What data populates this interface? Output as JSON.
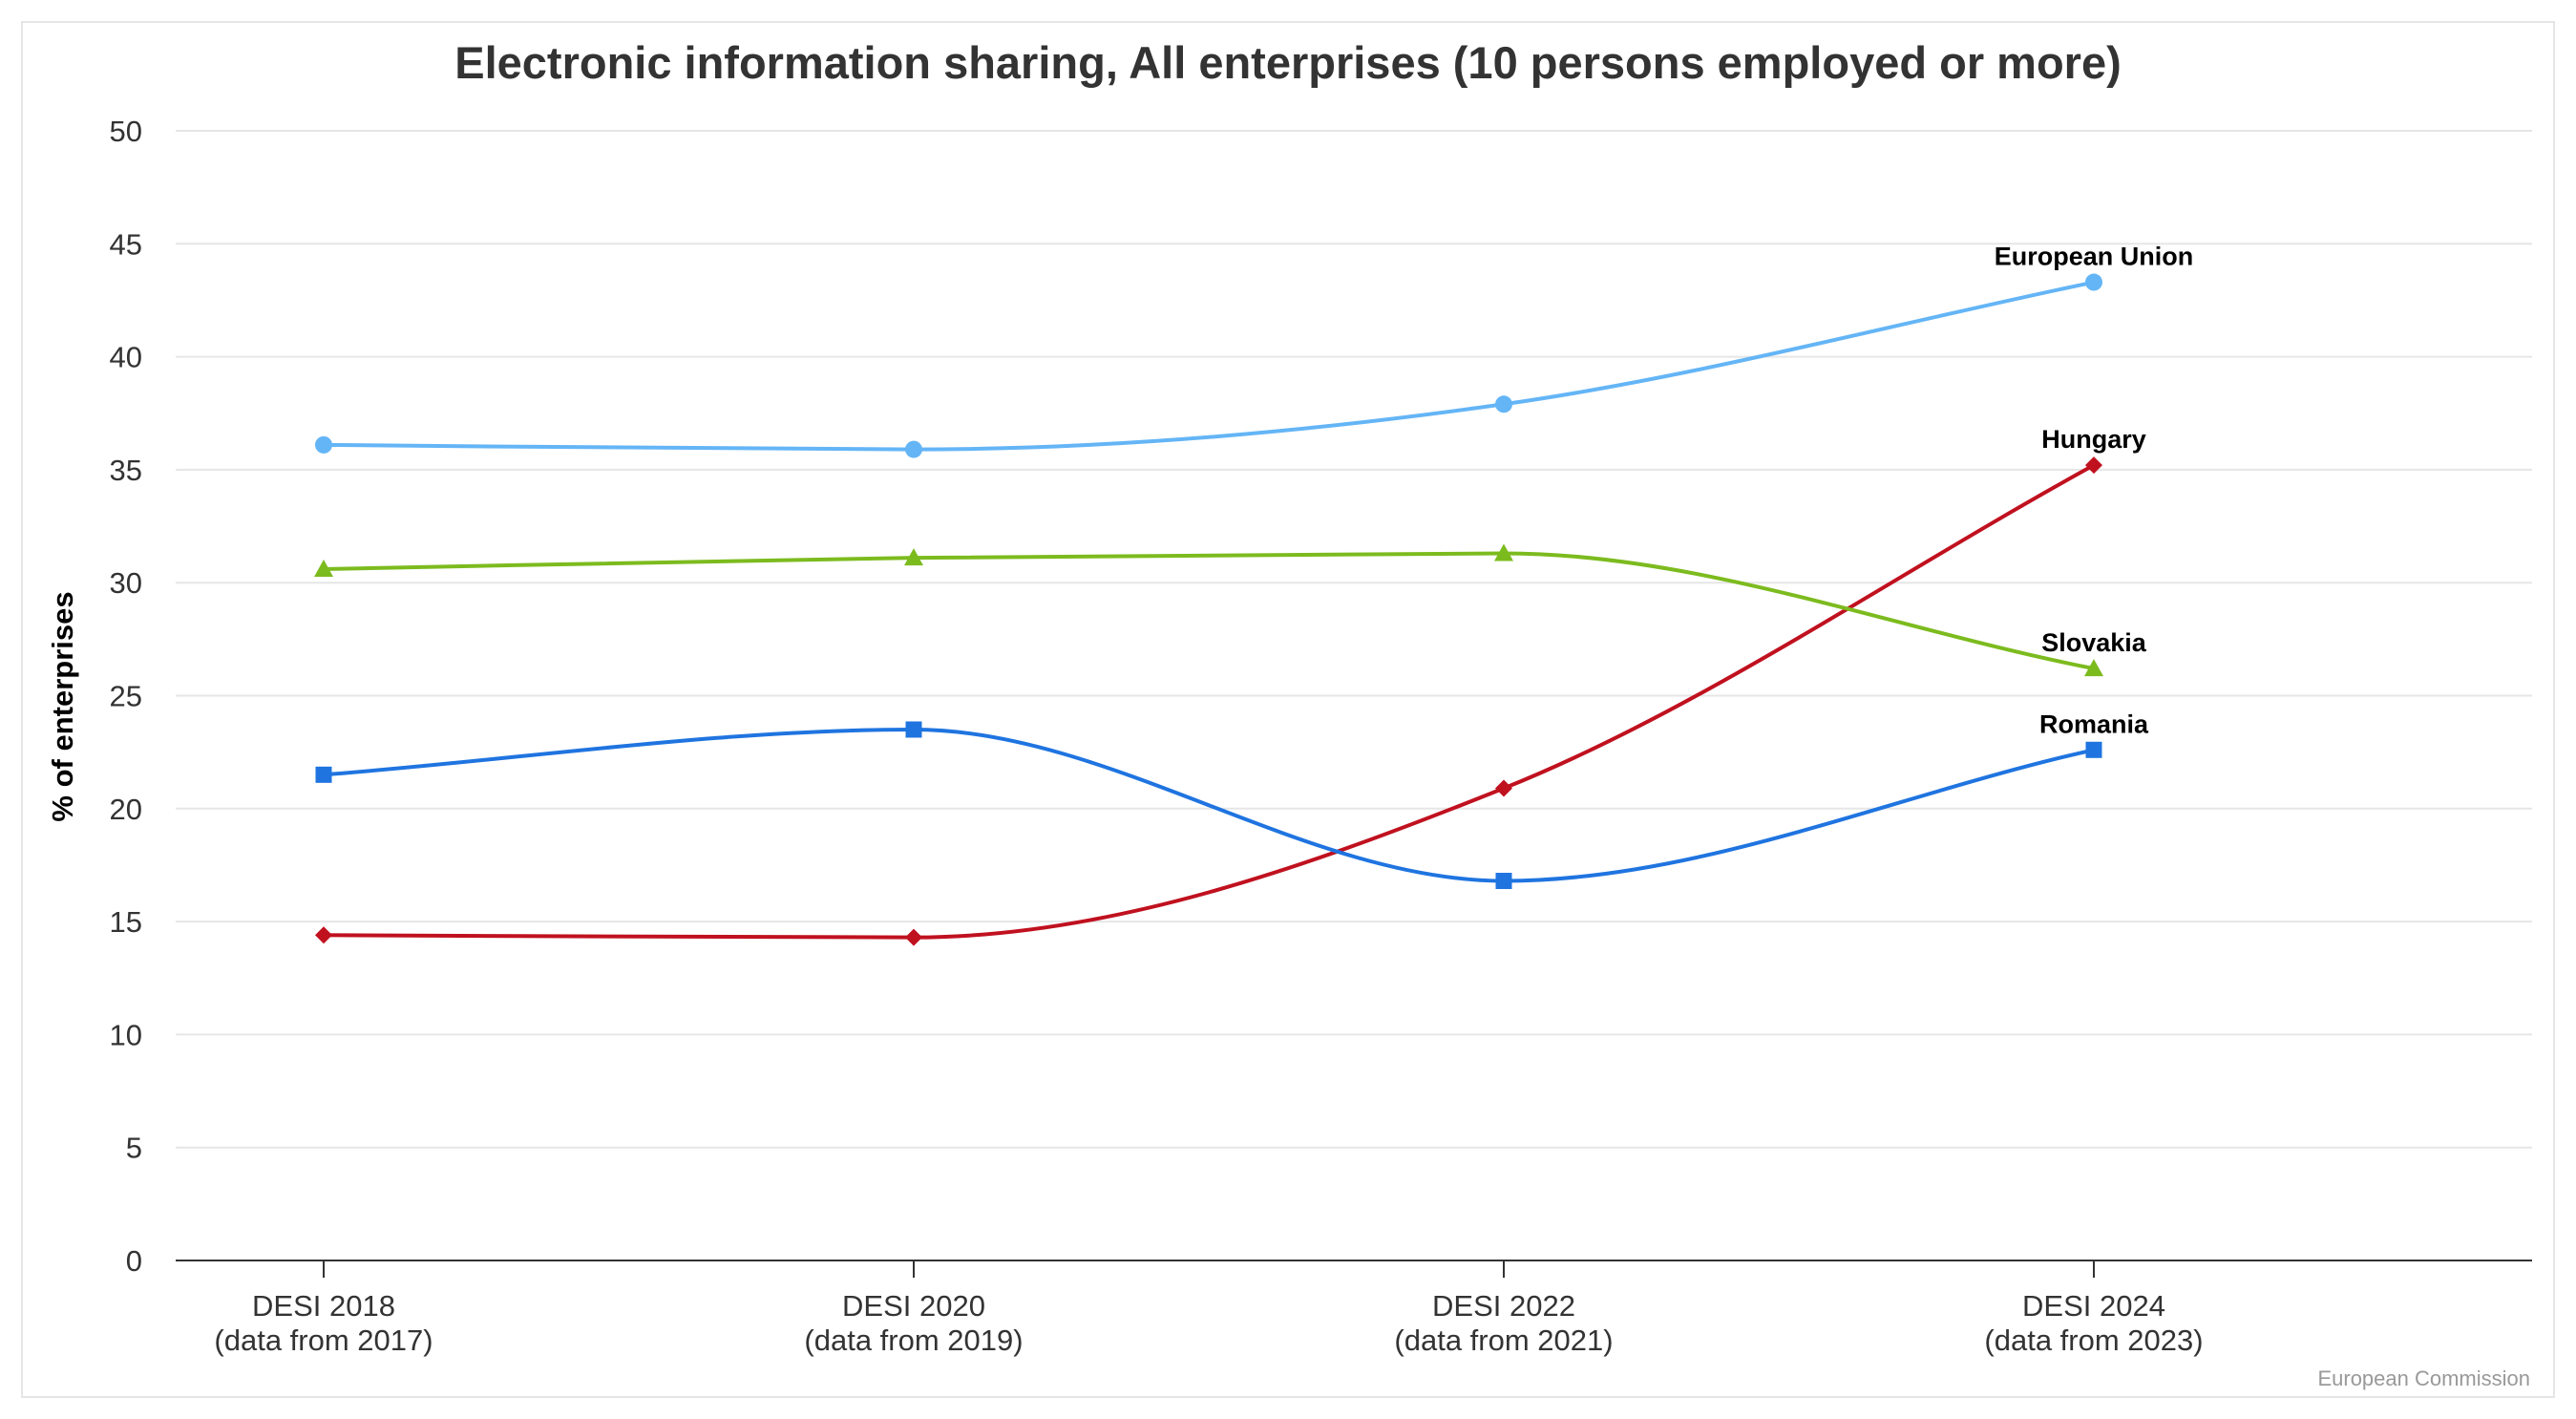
{
  "chart_data": {
    "type": "line",
    "title": "Electronic information sharing, All enterprises (10 persons employed or more)",
    "xlabel": "",
    "ylabel": "% of enterprises",
    "ylim": [
      0,
      50
    ],
    "yticks": [
      "0",
      "5",
      "10",
      "15",
      "20",
      "25",
      "30",
      "35",
      "40",
      "45",
      "50"
    ],
    "grid": true,
    "categories": [
      {
        "line1": "DESI 2018",
        "line2": "(data from 2017)"
      },
      {
        "line1": "DESI 2020",
        "line2": "(data from 2019)"
      },
      {
        "line1": "DESI 2022",
        "line2": "(data from 2021)"
      },
      {
        "line1": "DESI 2024",
        "line2": "(data from 2023)"
      }
    ],
    "series": [
      {
        "name": "European Union",
        "color": "#64b5f6",
        "marker": "circle",
        "values": [
          36.1,
          35.9,
          37.9,
          43.3
        ]
      },
      {
        "name": "Hungary",
        "color": "#c0111f",
        "marker": "diamond",
        "values": [
          14.4,
          14.3,
          20.9,
          35.2
        ]
      },
      {
        "name": "Slovakia",
        "color": "#7cbb1e",
        "marker": "triangle",
        "values": [
          30.6,
          31.1,
          31.3,
          26.2
        ]
      },
      {
        "name": "Romania",
        "color": "#1f74e0",
        "marker": "square",
        "values": [
          21.5,
          23.5,
          16.8,
          22.6
        ]
      }
    ],
    "credit": "European Commission"
  },
  "colors": {
    "grid": "#e6e6e6",
    "axis": "#333333",
    "frame_border": "#e6e6e6"
  }
}
